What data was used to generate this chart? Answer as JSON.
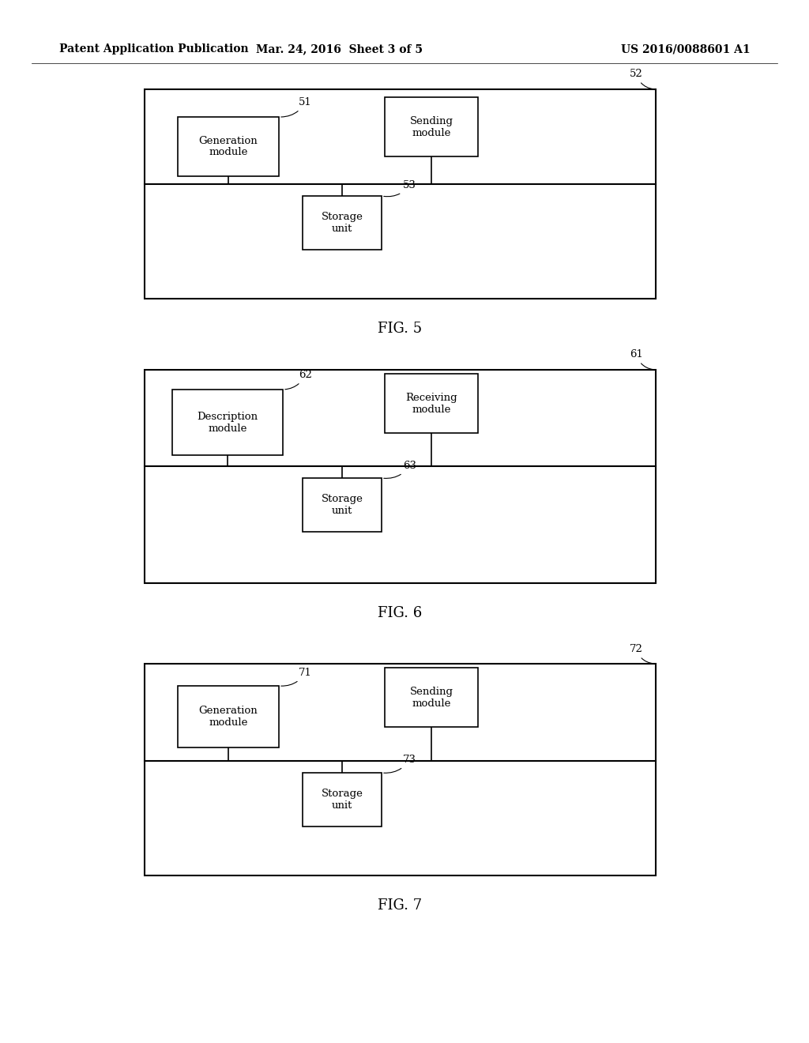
{
  "bg_color": "#ffffff",
  "header_left": "Patent Application Publication",
  "header_mid": "Mar. 24, 2016  Sheet 3 of 5",
  "header_right": "US 2016/0088601 A1",
  "figures": [
    {
      "id": "fig5",
      "caption": "FIG. 5",
      "outer_ref": "52",
      "mod1_label": "Generation\nmodule",
      "mod1_ref": "51",
      "mod2_label": "Sending\nmodule",
      "stor_label": "Storage\nunit",
      "stor_ref": "53"
    },
    {
      "id": "fig6",
      "caption": "FIG. 6",
      "outer_ref": "61",
      "mod1_label": "Description\nmodule",
      "mod1_ref": "62",
      "mod2_label": "Receiving\nmodule",
      "stor_label": "Storage\nunit",
      "stor_ref": "63"
    },
    {
      "id": "fig7",
      "caption": "FIG. 7",
      "outer_ref": "72",
      "mod1_label": "Generation\nmodule",
      "mod1_ref": "71",
      "mod2_label": "Sending\nmodule",
      "stor_label": "Storage\nunit",
      "stor_ref": "73"
    }
  ]
}
